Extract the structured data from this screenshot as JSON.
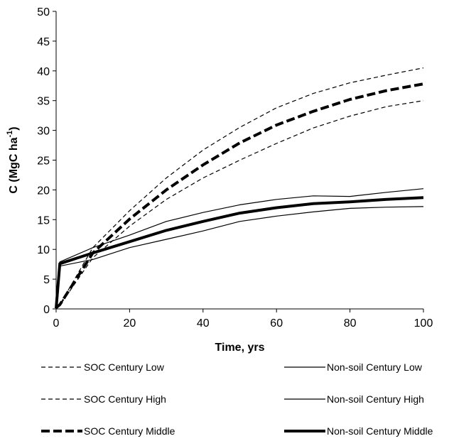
{
  "chart_data": {
    "type": "line",
    "xlabel": "Time, yrs",
    "ylabel": "C (MgC ha",
    "ylabel_sup": "-1",
    "ylabel_end": ")",
    "xlim": [
      0,
      100
    ],
    "ylim": [
      0,
      50
    ],
    "xticks": [
      0,
      20,
      40,
      60,
      80,
      100
    ],
    "yticks": [
      0,
      5,
      10,
      15,
      20,
      25,
      30,
      35,
      40,
      45,
      50
    ],
    "grid": false,
    "legend_position": "bottom",
    "series": [
      {
        "name": "SOC Century Low",
        "style": "dashed-thin",
        "x": [
          0,
          1,
          10,
          20,
          30,
          40,
          50,
          60,
          70,
          80,
          90,
          100
        ],
        "y": [
          0.2,
          0.6,
          8.6,
          13.9,
          18.4,
          22.0,
          25.0,
          27.8,
          30.4,
          32.4,
          34.0,
          35.0
        ]
      },
      {
        "name": "SOC Century High",
        "style": "dashed-thin",
        "x": [
          0,
          1,
          10,
          20,
          30,
          40,
          50,
          60,
          70,
          80,
          90,
          100
        ],
        "y": [
          0.2,
          0.7,
          10.3,
          16.5,
          22.0,
          26.7,
          30.5,
          33.8,
          36.2,
          38.0,
          39.3,
          40.5
        ]
      },
      {
        "name": "SOC Century Middle",
        "style": "dashed-thick",
        "x": [
          0,
          1,
          10,
          20,
          30,
          40,
          50,
          60,
          70,
          80,
          90,
          100
        ],
        "y": [
          0.2,
          0.7,
          9.4,
          15.1,
          20.0,
          24.2,
          27.9,
          30.9,
          33.2,
          35.2,
          36.7,
          37.8
        ]
      },
      {
        "name": "Non-soil Century Low",
        "style": "solid-thin",
        "x": [
          0,
          1,
          10,
          20,
          30,
          40,
          50,
          60,
          70,
          80,
          90,
          100
        ],
        "y": [
          0.1,
          7.2,
          8.3,
          10.3,
          11.7,
          13.1,
          14.7,
          15.6,
          16.3,
          16.9,
          17.1,
          17.2
        ]
      },
      {
        "name": "Non-soil Century High",
        "style": "solid-thin",
        "x": [
          0,
          1,
          10,
          20,
          30,
          40,
          50,
          60,
          70,
          80,
          90,
          100
        ],
        "y": [
          0.1,
          7.9,
          10.3,
          12.4,
          14.7,
          16.2,
          17.5,
          18.4,
          19.0,
          18.9,
          19.6,
          20.2
        ]
      },
      {
        "name": "Non-soil Century Middle",
        "style": "solid-thick",
        "x": [
          0,
          1,
          10,
          20,
          30,
          40,
          50,
          60,
          70,
          80,
          90,
          100
        ],
        "y": [
          0.1,
          7.6,
          9.4,
          11.3,
          13.2,
          14.7,
          16.1,
          17.0,
          17.7,
          18.0,
          18.4,
          18.7
        ]
      }
    ]
  }
}
